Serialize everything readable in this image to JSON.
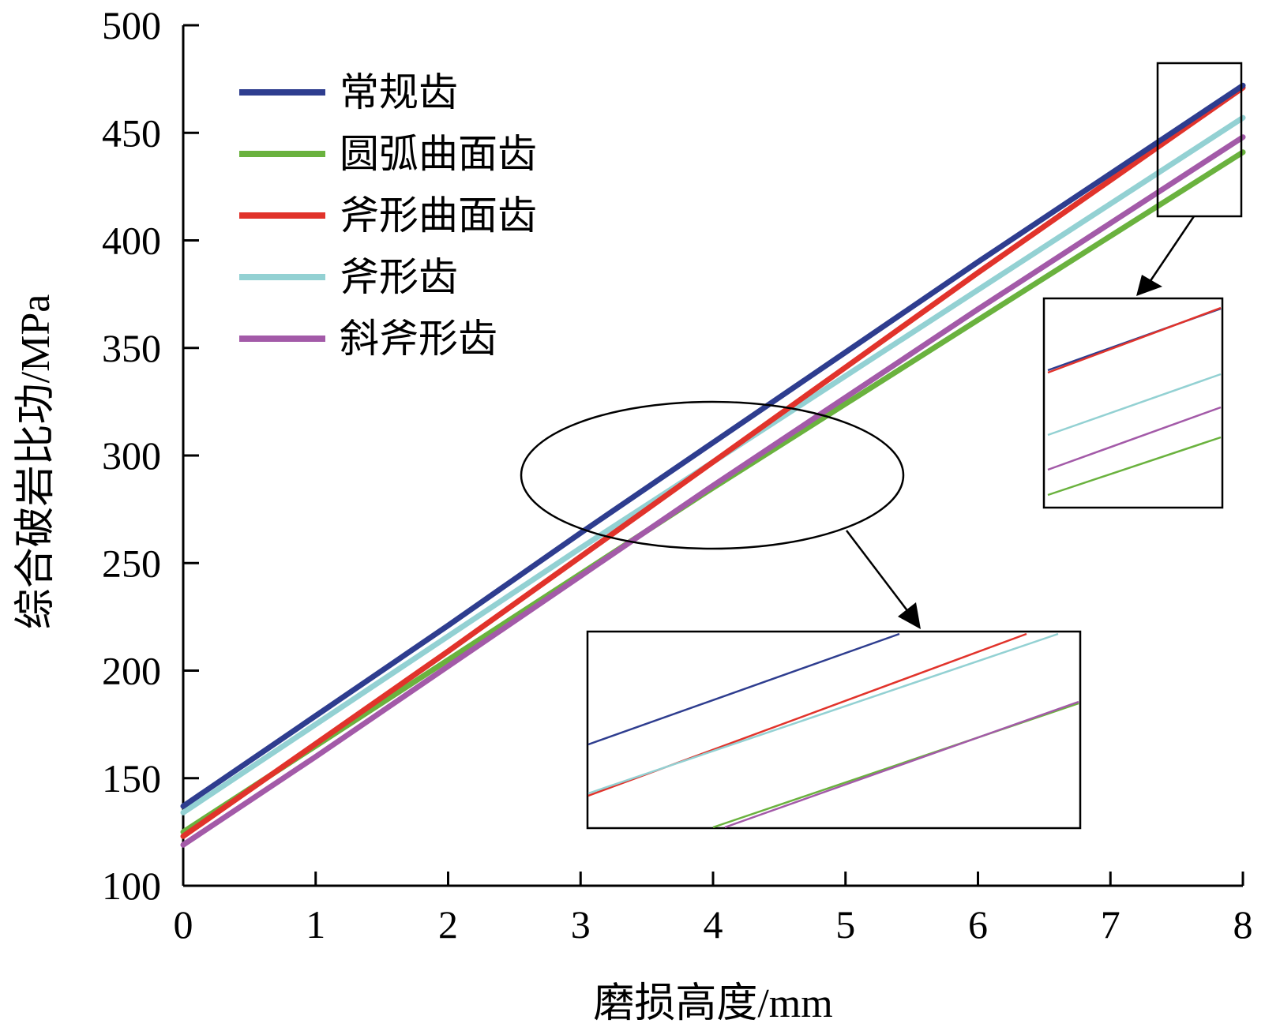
{
  "chart_data": {
    "type": "line",
    "xlabel": "磨损高度/mm",
    "ylabel": "综合破岩比功/MPa",
    "xlim": [
      0,
      8
    ],
    "ylim": [
      100,
      500
    ],
    "xticks": [
      "0",
      "1",
      "2",
      "3",
      "4",
      "5",
      "6",
      "7",
      "8"
    ],
    "yticks": [
      "100",
      "150",
      "200",
      "250",
      "300",
      "350",
      "400",
      "450",
      "500"
    ],
    "grid": false,
    "legend_position": "top-left",
    "x": [
      0,
      1,
      2,
      3,
      4,
      5,
      6,
      7,
      8
    ],
    "series": [
      {
        "name": "常规齿",
        "color": "#2e3d8f",
        "values": [
          137,
          179,
          221,
          264,
          306,
          348,
          390,
          431,
          472
        ]
      },
      {
        "name": "圆弧曲面齿",
        "color": "#6ab23e",
        "values": [
          125,
          165,
          205,
          245,
          285,
          324,
          363,
          402,
          441
        ]
      },
      {
        "name": "斧形曲面齿",
        "color": "#e1332b",
        "values": [
          123,
          166,
          209,
          253,
          297,
          341,
          385,
          428,
          471
        ]
      },
      {
        "name": "斧形齿",
        "color": "#93d1d3",
        "values": [
          134,
          175,
          216,
          257,
          297,
          337,
          377,
          417,
          457
        ]
      },
      {
        "name": "斜斧形齿",
        "color": "#a35aa8",
        "values": [
          119,
          160,
          202,
          244,
          286,
          327,
          368,
          408,
          448
        ]
      }
    ]
  }
}
